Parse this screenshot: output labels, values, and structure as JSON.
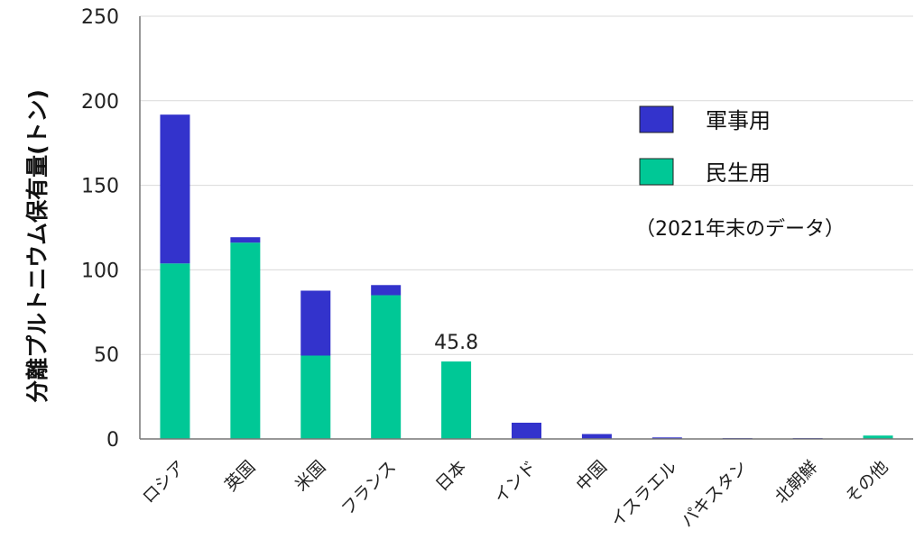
{
  "chart_data": {
    "type": "bar",
    "stacked": true,
    "title": "",
    "xlabel": "",
    "ylabel": "分離プルトニウム保有量(トン)",
    "ylim": [
      0,
      250
    ],
    "yticks": [
      0,
      50,
      100,
      150,
      200,
      250
    ],
    "grid": true,
    "legend_position": "top-right",
    "note": "（2021年末のデータ）",
    "categories": [
      "ロシア",
      "英国",
      "米国",
      "フランス",
      "日本",
      "インド",
      "中国",
      "イスラエル",
      "パキスタン",
      "北朝鮮",
      "その他"
    ],
    "series": [
      {
        "name": "民生用",
        "color": "#00c896",
        "values": [
          103.8,
          116.1,
          49.3,
          85.0,
          45.8,
          0,
          0,
          0,
          0,
          0,
          2.0
        ]
      },
      {
        "name": "軍事用",
        "color": "#3333cc",
        "values": [
          88.0,
          3.2,
          38.4,
          6.0,
          0,
          9.6,
          2.9,
          0.9,
          0.5,
          0.5,
          0
        ]
      }
    ],
    "data_labels": [
      {
        "category_index": 4,
        "text": "45.8"
      }
    ]
  }
}
